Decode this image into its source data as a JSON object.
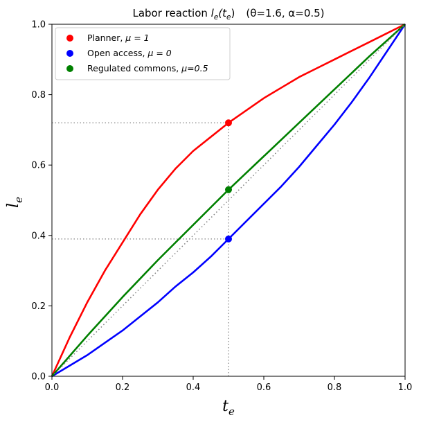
{
  "chart_data": {
    "type": "line",
    "title": "Labor reaction lₑ(tₑ)   (θ=1.6, α=0.5)",
    "title_parts": {
      "prefix": "Labor reaction ",
      "fn": "l",
      "fn_sub": "e",
      "arg_open": "(t",
      "arg_sub": "e",
      "arg_close": ")",
      "params": "(θ=1.6, α=0.5)"
    },
    "xlabel": "t",
    "xlabel_sub": "e",
    "ylabel": "l",
    "ylabel_sub": "e",
    "xlim": [
      0.0,
      1.0
    ],
    "ylim": [
      0.0,
      1.0
    ],
    "x_ticks": [
      "0.0",
      "0.2",
      "0.4",
      "0.6",
      "0.8",
      "1.0"
    ],
    "y_ticks": [
      "0.0",
      "0.2",
      "0.4",
      "0.6",
      "0.8",
      "1.0"
    ],
    "grid": false,
    "legend_position": "top-left",
    "series": [
      {
        "name": "Planner, μ = 1",
        "color": "#ff0000",
        "x": [
          0.0,
          0.05,
          0.1,
          0.15,
          0.2,
          0.25,
          0.3,
          0.35,
          0.4,
          0.45,
          0.5,
          0.55,
          0.6,
          0.65,
          0.7,
          0.75,
          0.8,
          0.85,
          0.9,
          0.95,
          1.0
        ],
        "y": [
          0.0,
          0.11,
          0.21,
          0.3,
          0.38,
          0.46,
          0.53,
          0.59,
          0.64,
          0.68,
          0.72,
          0.755,
          0.79,
          0.82,
          0.85,
          0.875,
          0.9,
          0.925,
          0.95,
          0.975,
          1.0
        ]
      },
      {
        "name": "Open access, μ = 0",
        "color": "#0000ff",
        "x": [
          0.0,
          0.05,
          0.1,
          0.15,
          0.2,
          0.25,
          0.3,
          0.35,
          0.4,
          0.45,
          0.5,
          0.55,
          0.6,
          0.65,
          0.7,
          0.75,
          0.8,
          0.85,
          0.9,
          0.95,
          1.0
        ],
        "y": [
          0.0,
          0.03,
          0.06,
          0.095,
          0.13,
          0.17,
          0.21,
          0.255,
          0.295,
          0.34,
          0.39,
          0.44,
          0.49,
          0.54,
          0.595,
          0.655,
          0.715,
          0.78,
          0.85,
          0.925,
          1.0
        ]
      },
      {
        "name": "Regulated commons, μ=0.5",
        "color": "#008000",
        "x": [
          0.0,
          0.1,
          0.2,
          0.3,
          0.4,
          0.5,
          0.6,
          0.7,
          0.8,
          0.9,
          1.0
        ],
        "y": [
          0.0,
          0.115,
          0.225,
          0.33,
          0.43,
          0.53,
          0.625,
          0.72,
          0.815,
          0.91,
          1.0
        ]
      },
      {
        "name": "",
        "color": "#808080",
        "style": "dotted",
        "x": [
          0.0,
          1.0
        ],
        "y": [
          0.0,
          1.0
        ]
      }
    ],
    "markers": [
      {
        "x": 0.5,
        "y": 0.72,
        "color": "#ff0000"
      },
      {
        "x": 0.5,
        "y": 0.53,
        "color": "#008000"
      },
      {
        "x": 0.5,
        "y": 0.39,
        "color": "#0000ff"
      }
    ],
    "reference_lines": {
      "vertical_x": 0.5,
      "vertical_to_y": 0.72,
      "horizontal": [
        {
          "y": 0.72,
          "to_x": 0.5
        },
        {
          "y": 0.39,
          "to_x": 0.5
        }
      ],
      "color": "#808080"
    },
    "legend": [
      {
        "label_prefix": "Planner, ",
        "label_math": "μ = 1",
        "color": "#ff0000"
      },
      {
        "label_prefix": "Open access, ",
        "label_math": "μ = 0",
        "color": "#0000ff"
      },
      {
        "label_prefix": "Regulated commons, ",
        "label_math": "μ=0.5",
        "color": "#008000"
      }
    ]
  }
}
